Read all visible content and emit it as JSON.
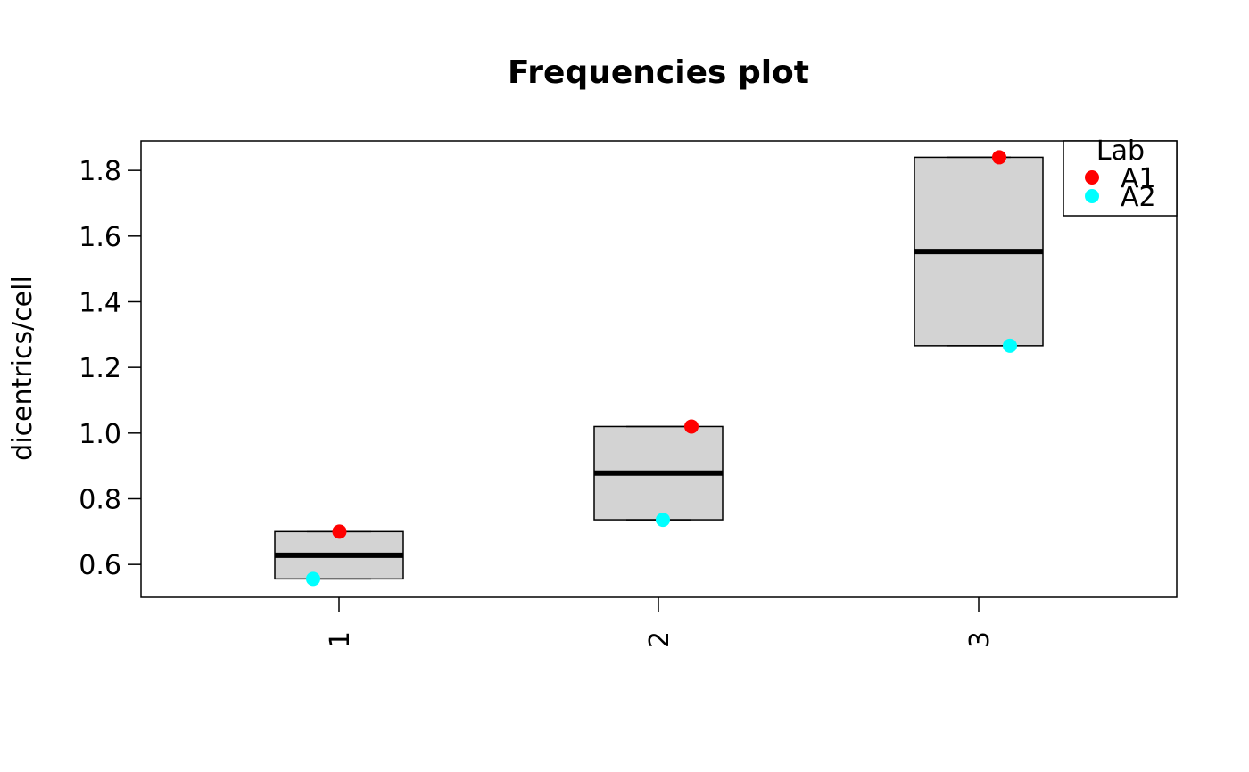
{
  "chart_data": {
    "type": "boxplot",
    "title": "Frequencies plot",
    "xlabel": "",
    "ylabel": "dicentrics/cell",
    "categories": [
      "1",
      "2",
      "3"
    ],
    "ylim": [
      0.5,
      1.89
    ],
    "yticks": [
      0.6,
      0.8,
      1.0,
      1.2,
      1.4,
      1.6,
      1.8
    ],
    "ytick_labels": [
      "0.6",
      "0.8",
      "1.0",
      "1.2",
      "1.4",
      "1.6",
      "1.8"
    ],
    "boxes": [
      {
        "category": "1",
        "min": 0.556,
        "q1": 0.556,
        "median": 0.628,
        "q3": 0.7,
        "max": 0.7
      },
      {
        "category": "2",
        "min": 0.736,
        "q1": 0.736,
        "median": 0.878,
        "q3": 1.02,
        "max": 1.02
      },
      {
        "category": "3",
        "min": 1.266,
        "q1": 1.266,
        "median": 1.553,
        "q3": 1.84,
        "max": 1.84
      }
    ],
    "series": [
      {
        "name": "A1",
        "color": "#ff0000",
        "points": [
          {
            "x": "1",
            "y": 0.7
          },
          {
            "x": "2",
            "y": 1.02
          },
          {
            "x": "3",
            "y": 1.84
          }
        ]
      },
      {
        "name": "A2",
        "color": "#00ffff",
        "points": [
          {
            "x": "1",
            "y": 0.556
          },
          {
            "x": "2",
            "y": 0.736
          },
          {
            "x": "3",
            "y": 1.266
          }
        ]
      }
    ],
    "legend": {
      "title": "Lab",
      "position": "top-right"
    },
    "box_fill": "#d3d3d3",
    "grid": false
  }
}
